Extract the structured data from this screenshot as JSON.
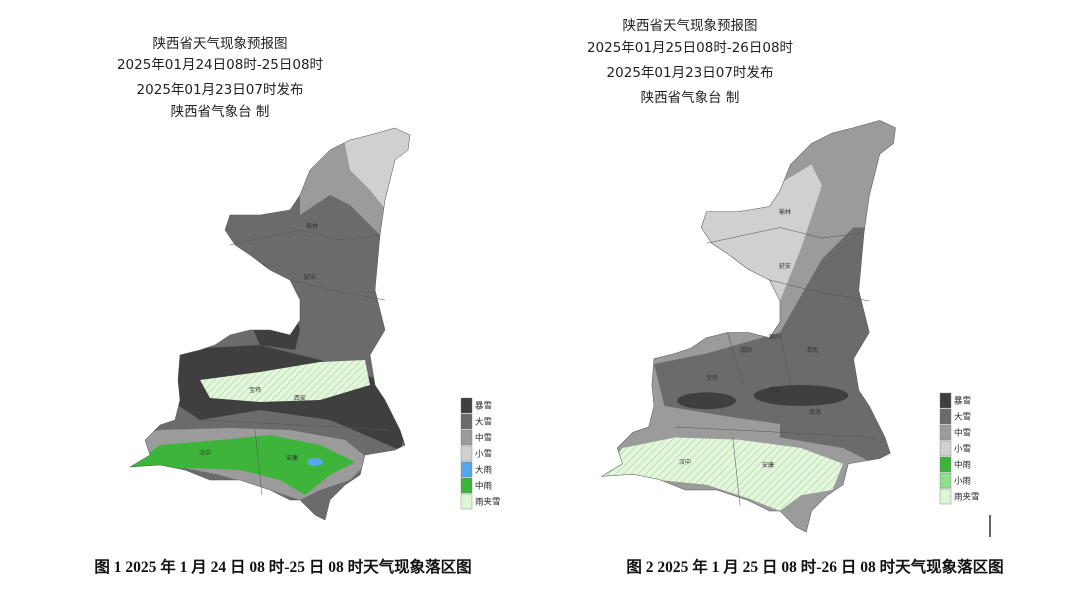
{
  "maps": [
    {
      "title_lines": [
        "陕西省天气现象预报图",
        "2025年01月24日08时-25日08时",
        "2025年01月23日07时发布",
        "陕西省气象台 制"
      ],
      "legend": [
        {
          "label": "暴雪",
          "color": "#3f3f3f"
        },
        {
          "label": "大雪",
          "color": "#6b6b6b"
        },
        {
          "label": "中雪",
          "color": "#9b9b9b"
        },
        {
          "label": "小雪",
          "color": "#d0d0d0"
        },
        {
          "label": "大雨",
          "color": "#55a8ea"
        },
        {
          "label": "中雨",
          "color": "#3db53a"
        },
        {
          "label": "雨夹雪",
          "color": "#dcf5d4"
        }
      ],
      "places": [
        "榆林",
        "延安",
        "宝鸡",
        "西安",
        "汉中",
        "安康"
      ],
      "caption": "图 1 2025 年 1 月 24 日 08 时-25 日 08 时天气现象落区图"
    },
    {
      "title_lines": [
        "陕西省天气现象预报图",
        "2025年01月25日08时-26日08时",
        "2025年01月23日07时发布",
        "陕西省气象台 制"
      ],
      "legend": [
        {
          "label": "暴雪",
          "color": "#3f3f3f"
        },
        {
          "label": "大雪",
          "color": "#6b6b6b"
        },
        {
          "label": "中雪",
          "color": "#9b9b9b"
        },
        {
          "label": "小雪",
          "color": "#d0d0d0"
        },
        {
          "label": "中雨",
          "color": "#3db53a"
        },
        {
          "label": "小雨",
          "color": "#8fe08b"
        },
        {
          "label": "雨夹雪",
          "color": "#dcf5d4"
        }
      ],
      "places": [
        "榆林",
        "延安",
        "铜川",
        "咸阳",
        "渭南",
        "宝鸡",
        "西安",
        "商洛",
        "汉中",
        "安康"
      ],
      "caption": "图 2 2025 年 1 月 25 日 08 时-26 日 08 时天气现象落区图"
    }
  ]
}
